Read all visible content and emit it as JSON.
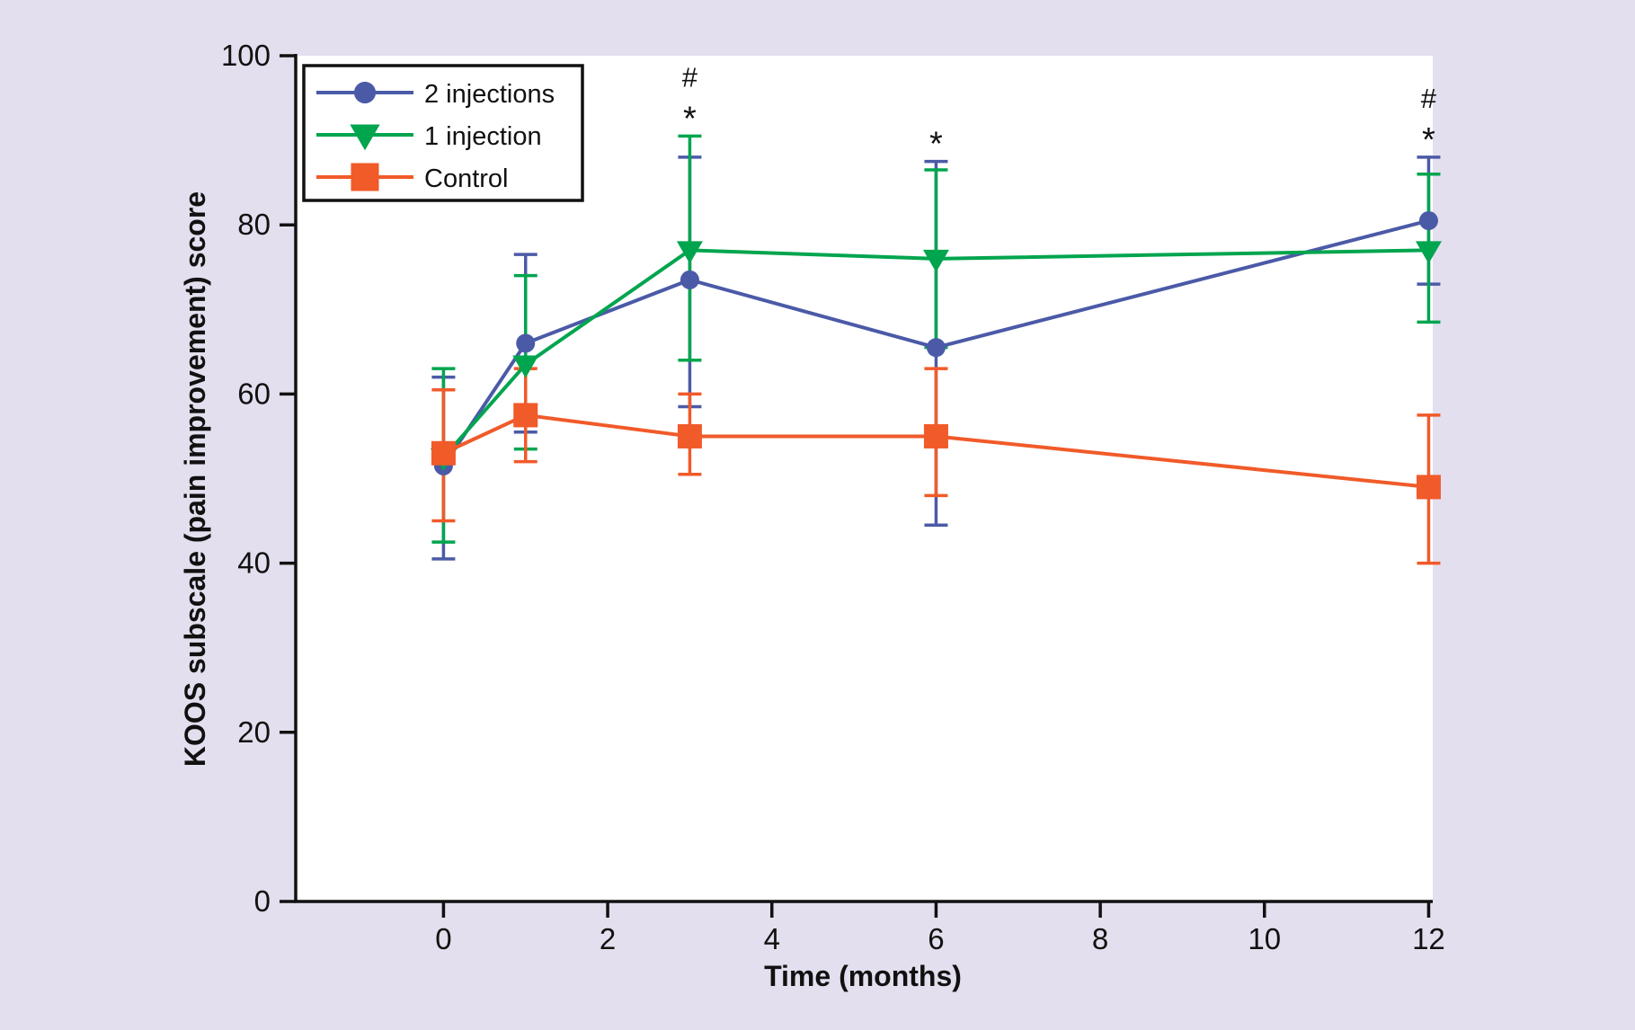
{
  "figure": {
    "background": "#e3dfee",
    "plot_background": "#ffffff",
    "axis_color": "#111111",
    "text_color": "#111111"
  },
  "chart_data": {
    "type": "line",
    "title": "",
    "xlabel": "Time (months)",
    "ylabel": "KOOS subscale (pain improvement) score",
    "x": [
      0,
      1,
      3,
      6,
      12
    ],
    "xticks": [
      "0",
      "2",
      "4",
      "6",
      "8",
      "10",
      "12"
    ],
    "xtick_values": [
      0,
      2,
      4,
      6,
      8,
      10,
      12
    ],
    "yticks": [
      "0",
      "20",
      "40",
      "60",
      "80",
      "100"
    ],
    "ytick_values": [
      0,
      20,
      40,
      60,
      80,
      100
    ],
    "xlim": [
      -1.8,
      12.05
    ],
    "ylim": [
      0,
      100
    ],
    "grid": false,
    "legend_position": "top-left",
    "series": [
      {
        "name": "2 injections",
        "color": "#4b5aa7",
        "marker": "circle",
        "values": [
          51.5,
          66,
          73.5,
          65.5,
          80.5
        ],
        "err_low": [
          40.5,
          55.5,
          58.5,
          44.5,
          73
        ],
        "err_high": [
          62,
          76.5,
          88,
          87.5,
          88
        ]
      },
      {
        "name": "1 injection",
        "color": "#00a54e",
        "marker": "triangle-down",
        "values": [
          52.5,
          63.5,
          77,
          76,
          77
        ],
        "err_low": [
          42.5,
          53.5,
          64,
          65.5,
          68.5
        ],
        "err_high": [
          63,
          74,
          90.5,
          86.5,
          86
        ]
      },
      {
        "name": "Control",
        "color": "#f15a29",
        "marker": "square",
        "values": [
          53,
          57.5,
          55,
          55,
          49
        ],
        "err_low": [
          45,
          52,
          50.5,
          48,
          40
        ],
        "err_high": [
          60.5,
          63,
          60,
          63,
          57.5
        ]
      }
    ],
    "annotations": [
      {
        "x": 3,
        "symbols": [
          "#",
          "*"
        ]
      },
      {
        "x": 6,
        "symbols": [
          "*"
        ]
      },
      {
        "x": 12,
        "symbols": [
          "#",
          "*"
        ]
      }
    ]
  }
}
